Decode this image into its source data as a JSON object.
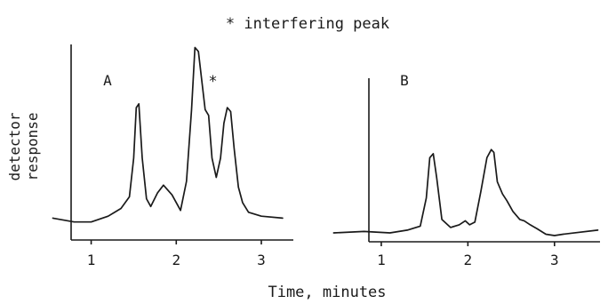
{
  "chart_data": {
    "type": "line",
    "title": "* interfering peak",
    "xlabel": "Time, minutes",
    "ylabel": [
      "detector",
      "response"
    ],
    "annotation_marker": "*",
    "panels": [
      {
        "label": "A",
        "xlim": [
          0.2,
          3.7
        ],
        "ylim": [
          0,
          1.0
        ],
        "x_ticks": [
          1,
          2,
          3
        ],
        "x_tick_labels": [
          "1",
          "2",
          "3"
        ],
        "series": [
          {
            "x": [
              0.55,
              0.8,
              1.0,
              1.2,
              1.35,
              1.45,
              1.5,
              1.53,
              1.56,
              1.6,
              1.65,
              1.7,
              1.78,
              1.85,
              1.95,
              2.05,
              2.12,
              2.18,
              2.22,
              2.26,
              2.3,
              2.34,
              2.38,
              2.42,
              2.47,
              2.52,
              2.56,
              2.6,
              2.64,
              2.68,
              2.73,
              2.78,
              2.85,
              3.0,
              3.25
            ],
            "y": [
              0.09,
              0.07,
              0.07,
              0.1,
              0.14,
              0.2,
              0.4,
              0.66,
              0.68,
              0.4,
              0.19,
              0.15,
              0.22,
              0.26,
              0.21,
              0.13,
              0.28,
              0.65,
              0.97,
              0.95,
              0.8,
              0.65,
              0.62,
              0.4,
              0.3,
              0.4,
              0.58,
              0.66,
              0.64,
              0.45,
              0.25,
              0.17,
              0.12,
              0.1,
              0.09
            ]
          }
        ],
        "markers": [
          {
            "x": 2.43,
            "y": 0.77,
            "text": "*"
          }
        ]
      },
      {
        "label": "B",
        "xlim": [
          0.2,
          3.7
        ],
        "ylim": [
          0,
          1.0
        ],
        "x_ticks": [
          1,
          2,
          3
        ],
        "x_tick_labels": [
          "1",
          "2",
          "3"
        ],
        "series": [
          {
            "x": [
              0.45,
              0.8,
              1.1,
              1.3,
              1.45,
              1.52,
              1.56,
              1.6,
              1.64,
              1.7,
              1.8,
              1.9,
              1.97,
              2.02,
              2.08,
              2.15,
              2.22,
              2.27,
              2.3,
              2.34,
              2.4,
              2.45,
              2.52,
              2.6,
              2.65,
              2.72,
              2.8,
              2.9,
              3.0,
              3.1,
              3.5
            ],
            "y": [
              0.04,
              0.05,
              0.04,
              0.06,
              0.09,
              0.3,
              0.6,
              0.63,
              0.45,
              0.14,
              0.08,
              0.1,
              0.13,
              0.1,
              0.12,
              0.35,
              0.6,
              0.66,
              0.64,
              0.42,
              0.33,
              0.28,
              0.2,
              0.14,
              0.13,
              0.1,
              0.07,
              0.03,
              0.02,
              0.03,
              0.06
            ]
          }
        ]
      }
    ]
  }
}
